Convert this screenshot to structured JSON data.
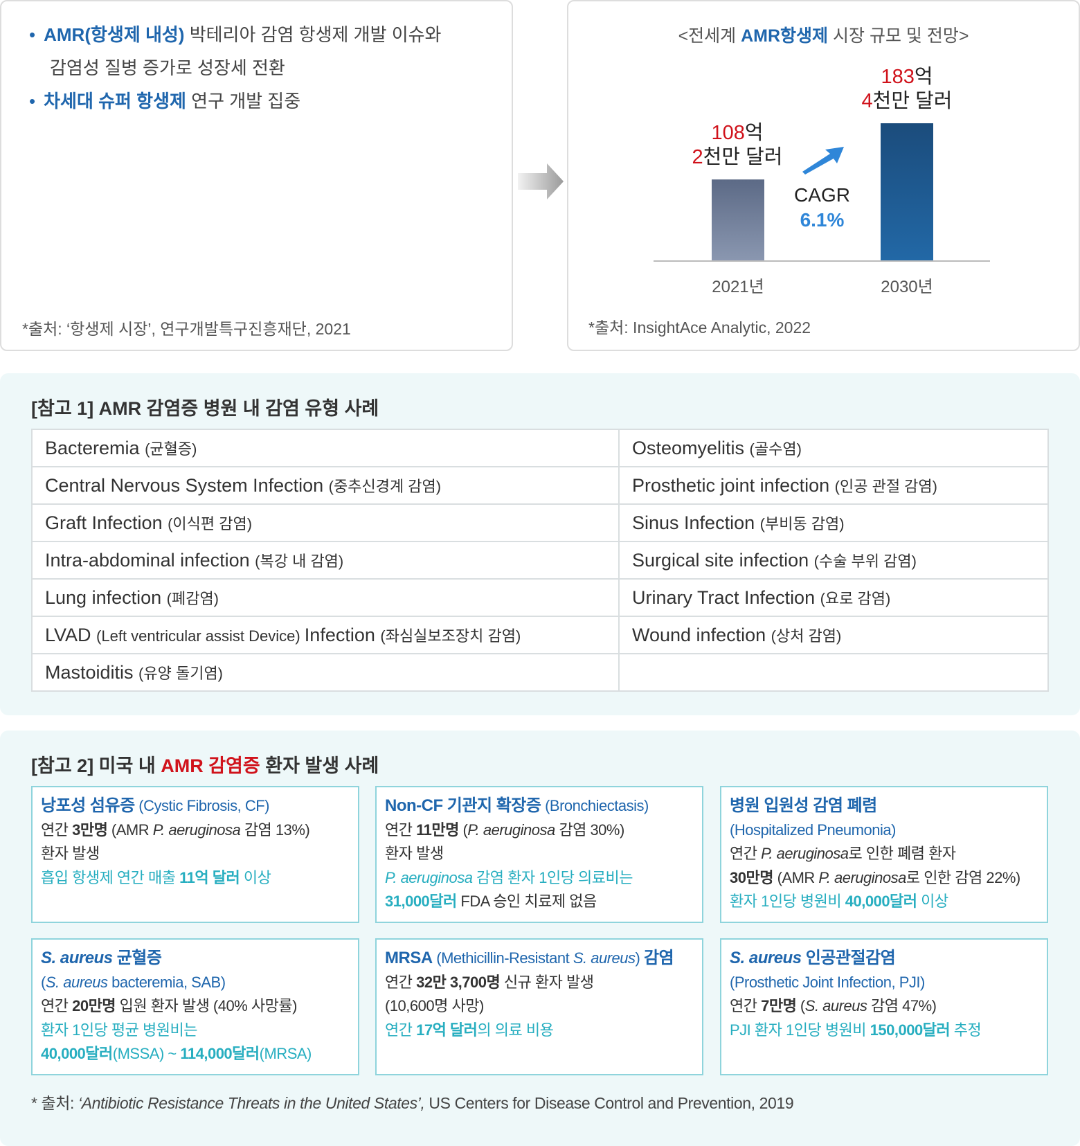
{
  "left_panel": {
    "bullets": [
      [
        [
          "AMR(항생제 내성)",
          "b"
        ],
        [
          " 박테리아 감염 항생제 개발 이슈와",
          ""
        ]
      ],
      [
        [
          "감염성 질병 증가로 성장세 전환",
          ""
        ]
      ],
      [
        [
          "차세대 슈퍼 항생제",
          "b"
        ],
        [
          " 연구 개발 집중",
          ""
        ]
      ]
    ],
    "source": "*출처: ‘항생제 시장’, 연구개발특구진흥재단, 2021"
  },
  "arrow_icon": "right-arrow-icon",
  "chart_data": {
    "type": "bar",
    "title": [
      [
        "<전세계 ",
        ""
      ],
      [
        "AMR항생제",
        "b"
      ],
      [
        " 시장 규모 및 전망>",
        ""
      ]
    ],
    "categories": [
      "2021년",
      "2030년"
    ],
    "values": [
      108.2,
      183.4
    ],
    "unit": "억 달러",
    "data_labels": [
      {
        "line1": [
          [
            "108",
            "red"
          ],
          [
            "억",
            ""
          ]
        ],
        "line2": [
          [
            "2",
            "red"
          ],
          [
            "천만 달러",
            ""
          ]
        ]
      },
      {
        "line1": [
          [
            "183",
            "red"
          ],
          [
            "억",
            ""
          ]
        ],
        "line2": [
          [
            "4",
            "red"
          ],
          [
            "천만 달러",
            ""
          ]
        ]
      }
    ],
    "bar_colors": [
      [
        "#5c6a86",
        "#8a97b0"
      ],
      [
        "#1b4c7c",
        "#2268a6"
      ]
    ],
    "annotation": {
      "label": "CAGR",
      "value": "6.1%",
      "value_color": "#2f86d8"
    },
    "source": "*출처: InsightAce Analytic, 2022"
  },
  "ref1": {
    "title": "[참고 1] AMR 감염증 병원 내 감염 유형 사례",
    "rows": [
      [
        [
          "Bacteremia ",
          "(균혈증)"
        ],
        [
          "Osteomyelitis ",
          "(골수염)"
        ]
      ],
      [
        [
          "Central Nervous System Infection ",
          "(중추신경계 감염)"
        ],
        [
          "Prosthetic joint infection ",
          "(인공 관절 감염)"
        ]
      ],
      [
        [
          "Graft Infection ",
          "(이식편 감염)"
        ],
        [
          "Sinus Infection ",
          "(부비동 감염)"
        ]
      ],
      [
        [
          "Intra-abdominal infection ",
          "(복강 내 감염)"
        ],
        [
          "Surgical site infection ",
          "(수술 부위 감염)"
        ]
      ],
      [
        [
          "Lung infection ",
          "(폐감염)"
        ],
        [
          "Urinary Tract Infection ",
          "(요로 감염)"
        ]
      ],
      [
        [
          "LVAD ",
          "(Left ventricular assist Device) ",
          "Infection ",
          "(좌심실보조장치 감염)"
        ],
        [
          "Wound infection ",
          "(상처 감염)"
        ]
      ],
      [
        [
          "Mastoiditis ",
          "(유양 돌기염)"
        ],
        [
          "",
          ""
        ]
      ]
    ]
  },
  "ref2": {
    "title": [
      [
        "[참고 2] 미국 내 ",
        ""
      ],
      [
        "AMR 감염증",
        "red"
      ],
      [
        " 환자 발생 사례",
        ""
      ]
    ],
    "cards": [
      [
        [
          [
            "낭포성 섬유증",
            "t"
          ],
          [
            " (Cystic Fibrosis, CF)",
            "tn"
          ]
        ],
        [
          [
            "연간 ",
            ""
          ],
          [
            "3만명",
            "k"
          ],
          [
            " (AMR ",
            ""
          ],
          [
            "P. aeruginosa",
            "i"
          ],
          [
            " 감염 13%)",
            ""
          ]
        ],
        [
          [
            "환자 발생",
            ""
          ]
        ],
        [
          [
            "흡입 항생제 연간 매출 ",
            "c"
          ],
          [
            "11억 달러",
            "cb"
          ],
          [
            " 이상",
            "c"
          ]
        ]
      ],
      [
        [
          [
            "Non-CF 기관지 확장증",
            "t"
          ],
          [
            " (Bronchiectasis)",
            "tn"
          ]
        ],
        [
          [
            "연간 ",
            ""
          ],
          [
            "11만명",
            "k"
          ],
          [
            " (",
            ""
          ],
          [
            "P. aeruginosa",
            "i"
          ],
          [
            " 감염 30%)",
            ""
          ]
        ],
        [
          [
            "환자 발생",
            ""
          ]
        ],
        [
          [
            "P. aeruginosa",
            "c i"
          ],
          [
            " 감염 환자 1인당 의료비는",
            "c"
          ]
        ],
        [
          [
            "31,000달러",
            "cb"
          ],
          [
            "   FDA 승인 치료제 없음",
            ""
          ]
        ]
      ],
      [
        [
          [
            "병원 입원성 감염 폐렴",
            "t"
          ]
        ],
        [
          [
            "(Hospitalized Pneumonia)",
            "tn"
          ]
        ],
        [
          [
            "연간 ",
            ""
          ],
          [
            "P. aeruginosa",
            "i"
          ],
          [
            "로 인한 폐렴 환자",
            ""
          ]
        ],
        [
          [
            "30만명",
            "k"
          ],
          [
            " (AMR ",
            ""
          ],
          [
            "P. aeruginosa",
            "i"
          ],
          [
            "로 인한 감염 22%)",
            ""
          ]
        ],
        [
          [
            "환자 1인당 병원비 ",
            "c"
          ],
          [
            "40,000달러",
            "cb"
          ],
          [
            " 이상",
            "c"
          ]
        ]
      ],
      [
        [
          [
            "S. aureus",
            "t i"
          ],
          [
            " 균혈증",
            "t"
          ]
        ],
        [
          [
            "(",
            "tn"
          ],
          [
            "S. aureus",
            "tn i"
          ],
          [
            " bacteremia, SAB)",
            "tn"
          ]
        ],
        [
          [
            "연간 ",
            ""
          ],
          [
            "20만명",
            "k"
          ],
          [
            " 입원 환자 발생 (40% 사망률)",
            ""
          ]
        ],
        [
          [
            "환자 1인당 평균 병원비는",
            "c"
          ]
        ],
        [
          [
            "40,000달러",
            "cb"
          ],
          [
            "(MSSA) ~ ",
            "c"
          ],
          [
            "114,000달러",
            "cb"
          ],
          [
            "(MRSA)",
            "c"
          ]
        ]
      ],
      [
        [
          [
            "MRSA",
            "t"
          ],
          [
            " (Methicillin-Resistant ",
            "tn"
          ],
          [
            "S. aureus",
            "tn i"
          ],
          [
            ") ",
            "tn"
          ],
          [
            "감염",
            "t"
          ]
        ],
        [
          [
            "연간 ",
            ""
          ],
          [
            "32만 3,700명",
            "k"
          ],
          [
            " 신규 환자 발생",
            ""
          ]
        ],
        [
          [
            "(10,600명 사망)",
            ""
          ]
        ],
        [
          [
            "연간 ",
            "c"
          ],
          [
            "17억 달러",
            "cb"
          ],
          [
            "의 의료 비용",
            "c"
          ]
        ]
      ],
      [
        [
          [
            "S. aureus",
            "t i"
          ],
          [
            " 인공관절감염",
            "t"
          ]
        ],
        [
          [
            "(Prosthetic Joint Infection, PJI)",
            "tn"
          ]
        ],
        [
          [
            "연간 ",
            ""
          ],
          [
            "7만명",
            "k"
          ],
          [
            " (",
            ""
          ],
          [
            "S. aureus",
            "i"
          ],
          [
            " 감염 47%)",
            ""
          ]
        ],
        [
          [
            "PJI 환자 1인당 병원비 ",
            "c"
          ],
          [
            "150,000달러",
            "cb"
          ],
          [
            " 추정",
            "c"
          ]
        ]
      ]
    ],
    "source": [
      [
        "* 출처: ",
        ""
      ],
      [
        "‘Antibiotic Resistance Threats in the United States’,",
        "i"
      ],
      [
        "  US Centers for Disease Control and Prevention, 2019",
        ""
      ]
    ]
  }
}
